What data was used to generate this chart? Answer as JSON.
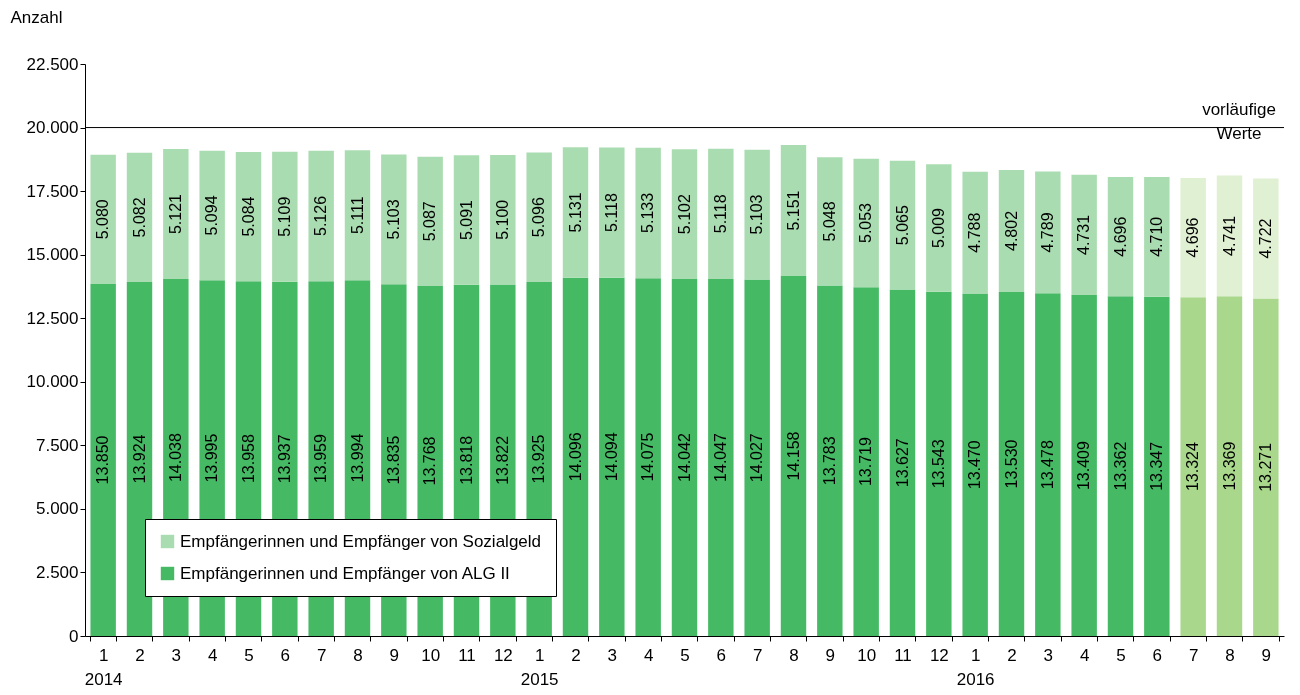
{
  "chart_data": {
    "type": "bar",
    "stacked": true,
    "ylabel": "Anzahl",
    "categories": [
      "1\n2014",
      "2",
      "3",
      "4",
      "5",
      "6",
      "7",
      "8",
      "9",
      "10",
      "11",
      "12",
      "1\n2015",
      "2",
      "3",
      "4",
      "5",
      "6",
      "7",
      "8",
      "9",
      "10",
      "11",
      "12",
      "1\n2016",
      "2",
      "3",
      "4",
      "5",
      "6",
      "7",
      "8",
      "9"
    ],
    "series": [
      {
        "name": "Empfängerinnen und Empfänger von ALG II",
        "color": "#46b964",
        "colors": [
          "#46b964",
          "#46b964",
          "#46b964",
          "#46b964",
          "#46b964",
          "#46b964",
          "#46b964",
          "#46b964",
          "#46b964",
          "#46b964",
          "#46b964",
          "#46b964",
          "#46b964",
          "#46b964",
          "#46b964",
          "#46b964",
          "#46b964",
          "#46b964",
          "#46b964",
          "#46b964",
          "#46b964",
          "#46b964",
          "#46b964",
          "#46b964",
          "#46b964",
          "#46b964",
          "#46b964",
          "#46b964",
          "#46b964",
          "#46b964",
          "#a9d88c",
          "#a9d88c",
          "#a9d88c"
        ],
        "values": [
          13850,
          13924,
          14038,
          13995,
          13958,
          13937,
          13959,
          13994,
          13835,
          13768,
          13818,
          13822,
          13925,
          14096,
          14094,
          14075,
          14042,
          14047,
          14027,
          14158,
          13783,
          13719,
          13627,
          13543,
          13470,
          13530,
          13478,
          13409,
          13362,
          13347,
          13324,
          13369,
          13271
        ],
        "value_labels": [
          "13.850",
          "13.924",
          "14.038",
          "13.995",
          "13.958",
          "13.937",
          "13.959",
          "13.994",
          "13.835",
          "13.768",
          "13.818",
          "13.822",
          "13.925",
          "14.096",
          "14.094",
          "14.075",
          "14.042",
          "14.047",
          "14.027",
          "14.158",
          "13.783",
          "13.719",
          "13.627",
          "13.543",
          "13.470",
          "13.530",
          "13.478",
          "13.409",
          "13.362",
          "13.347",
          "13.324",
          "13.369",
          "13.271"
        ]
      },
      {
        "name": "Empfängerinnen und Empfänger von Sozialgeld",
        "color": "#aadcb1",
        "colors": [
          "#aadcb1",
          "#aadcb1",
          "#aadcb1",
          "#aadcb1",
          "#aadcb1",
          "#aadcb1",
          "#aadcb1",
          "#aadcb1",
          "#aadcb1",
          "#aadcb1",
          "#aadcb1",
          "#aadcb1",
          "#aadcb1",
          "#aadcb1",
          "#aadcb1",
          "#aadcb1",
          "#aadcb1",
          "#aadcb1",
          "#aadcb1",
          "#aadcb1",
          "#aadcb1",
          "#aadcb1",
          "#aadcb1",
          "#aadcb1",
          "#aadcb1",
          "#aadcb1",
          "#aadcb1",
          "#aadcb1",
          "#aadcb1",
          "#aadcb1",
          "#e0f0d2",
          "#e0f0d2",
          "#e0f0d2"
        ],
        "values": [
          5080,
          5082,
          5121,
          5094,
          5084,
          5109,
          5126,
          5111,
          5103,
          5087,
          5091,
          5100,
          5096,
          5131,
          5118,
          5133,
          5102,
          5118,
          5103,
          5151,
          5048,
          5053,
          5065,
          5009,
          4788,
          4802,
          4789,
          4731,
          4696,
          4710,
          4696,
          4741,
          4722
        ],
        "value_labels": [
          "5.080",
          "5.082",
          "5.121",
          "5.094",
          "5.084",
          "5.109",
          "5.126",
          "5.111",
          "5.103",
          "5.087",
          "5.091",
          "5.100",
          "5.096",
          "5.131",
          "5.118",
          "5.133",
          "5.102",
          "5.118",
          "5.103",
          "5.151",
          "5.048",
          "5.053",
          "5.065",
          "5.009",
          "4.788",
          "4.802",
          "4.789",
          "4.731",
          "4.696",
          "4.710",
          "4.696",
          "4.741",
          "4.722"
        ]
      }
    ],
    "ylim": [
      0,
      22500
    ],
    "yticks": [
      0,
      {
        "value": 2500,
        "label": "2.500"
      },
      {
        "value": 5000,
        "label": "5.000"
      },
      {
        "value": 7500,
        "label": "7.500"
      },
      {
        "value": 10000,
        "label": "10.000"
      },
      {
        "value": 12500,
        "label": "12.500"
      },
      {
        "value": 15000,
        "label": "15.000"
      },
      {
        "value": 17500,
        "label": "17.500"
      },
      {
        "value": 20000,
        "label": "20.000"
      },
      {
        "value": 22500,
        "label": "22.500"
      }
    ],
    "ref_lines": [
      {
        "axis": "y",
        "value": 20000,
        "color": "#000000"
      }
    ],
    "annotations": [
      "vorläufige Werte"
    ],
    "legend": "bottom left",
    "grid": false
  }
}
